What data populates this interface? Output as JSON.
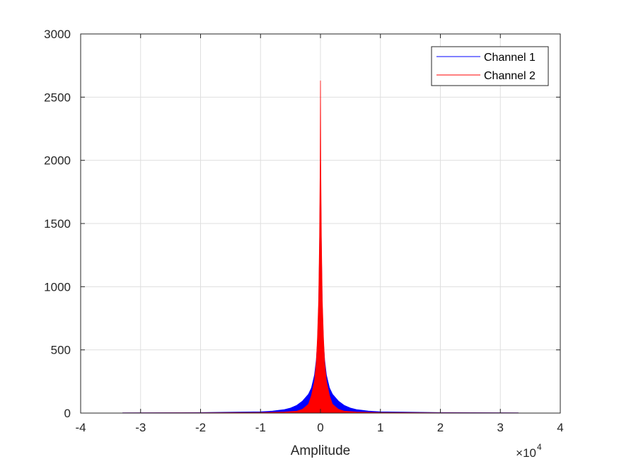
{
  "chart_data": {
    "type": "histogram",
    "title": "",
    "xlabel": "Amplitude",
    "ylabel": "",
    "xlim": [
      -40000,
      40000
    ],
    "ylim": [
      0,
      3000
    ],
    "x_ticks": [
      -40000,
      -30000,
      -20000,
      -10000,
      0,
      10000,
      20000,
      30000,
      40000
    ],
    "x_tick_labels": [
      "-4",
      "-3",
      "-2",
      "-1",
      "0",
      "1",
      "2",
      "3",
      "4"
    ],
    "x_exponent_base": "×10",
    "x_exponent_power": "4",
    "y_ticks": [
      0,
      500,
      1000,
      1500,
      2000,
      2500,
      3000
    ],
    "y_tick_labels": [
      "0",
      "500",
      "1000",
      "1500",
      "2000",
      "2500",
      "3000"
    ],
    "grid": true,
    "legend_position": "top-right",
    "series": [
      {
        "name": "Channel 1",
        "color": "#0000ff",
        "x": [
          -33000,
          -20000,
          -10000,
          -8000,
          -6000,
          -5000,
          -4000,
          -3000,
          -2000,
          -1500,
          -1000,
          -700,
          -500,
          -300,
          -150,
          0,
          150,
          300,
          500,
          700,
          1000,
          1500,
          2000,
          3000,
          4000,
          5000,
          6000,
          8000,
          10000,
          20000,
          33000
        ],
        "y": [
          2,
          4,
          10,
          16,
          28,
          40,
          60,
          95,
          150,
          200,
          300,
          420,
          560,
          850,
          1300,
          2000,
          1300,
          850,
          560,
          420,
          300,
          200,
          150,
          95,
          60,
          40,
          28,
          16,
          10,
          4,
          2
        ]
      },
      {
        "name": "Channel 2",
        "color": "#ff0000",
        "x": [
          -33000,
          -20000,
          -10000,
          -6000,
          -4000,
          -3000,
          -2000,
          -1500,
          -1000,
          -700,
          -500,
          -300,
          -150,
          -50,
          0,
          50,
          150,
          300,
          500,
          700,
          1000,
          1500,
          2000,
          3000,
          4000,
          6000,
          10000,
          20000,
          33000
        ],
        "y": [
          1,
          2,
          4,
          8,
          15,
          30,
          70,
          140,
          250,
          400,
          600,
          900,
          1400,
          2000,
          2630,
          2000,
          1400,
          900,
          600,
          400,
          250,
          140,
          70,
          30,
          15,
          8,
          4,
          2,
          1
        ]
      }
    ]
  }
}
